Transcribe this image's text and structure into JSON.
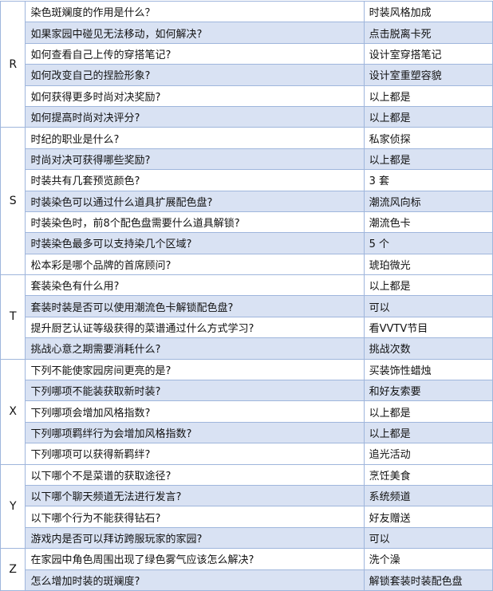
{
  "colors": {
    "row_alt": "#d9e2f3",
    "border": "#9fb6dc"
  },
  "groups": [
    {
      "letter": "R",
      "rows": [
        {
          "q": "染色斑斓度的作用是什么？",
          "a": "时装风格加成"
        },
        {
          "q": "如果家园中碰见无法移动，如何解决?",
          "a": "点击脱离卡死"
        },
        {
          "q": "如何查看自己上传的穿搭笔记?",
          "a": "设计室穿搭笔记"
        },
        {
          "q": "如何改变自己的捏脸形象?",
          "a": "设计室重塑容貌"
        },
        {
          "q": "如何获得更多时尚对决奖励?",
          "a": "以上都是"
        },
        {
          "q": "如何提高时尚对决评分?",
          "a": "以上都是"
        }
      ]
    },
    {
      "letter": "S",
      "rows": [
        {
          "q": "时纪的职业是什么?",
          "a": "私家侦探"
        },
        {
          "q": "时尚对决可获得哪些奖励?",
          "a": "以上都是"
        },
        {
          "q": "时装共有几套预览颜色?",
          "a": " 3 套"
        },
        {
          "q": "时装染色可以通过什么道具扩展配色盘?",
          "a": "潮流风向标"
        },
        {
          "q": "时装染色时，前8个配色盘需要什么道具解锁?",
          "a": "潮流色卡"
        },
        {
          "q": "时装染色最多可以支持染几个区域?",
          "a": " 5 个"
        },
        {
          "q": "松本彩是哪个品牌的首席顾问?",
          "a": "琥珀微光"
        }
      ]
    },
    {
      "letter": "T",
      "rows": [
        {
          "q": "套装染色有什么用?",
          "a": "以上都是"
        },
        {
          "q": "套装时装是否可以使用潮流色卡解锁配色盘?",
          "a": "可以"
        },
        {
          "q": "提升厨艺认证等级获得的菜谱通过什么方式学习?",
          "a": "看VVTV节目"
        },
        {
          "q": "挑战心意之期需要消耗什么?",
          "a": "挑战次数"
        }
      ]
    },
    {
      "letter": "X",
      "rows": [
        {
          "q": "下列不能使家园房间更亮的是?",
          "a": "买装饰性蜡烛"
        },
        {
          "q": "下列哪项不能装获取新时装?",
          "a": "和好友索要"
        },
        {
          "q": "下列哪项会增加风格指数?",
          "a": "以上都是"
        },
        {
          "q": "下列哪项羁绊行为会增加风格指数?",
          "a": "以上都是"
        },
        {
          "q": "下列哪项可以获得新羁绊?",
          "a": "追光活动"
        }
      ]
    },
    {
      "letter": "Y",
      "rows": [
        {
          "q": "以下哪个不是菜谱的获取途径?",
          "a": "烹饪美食"
        },
        {
          "q": "以下哪个聊天频道无法进行发言?",
          "a": "系统频道"
        },
        {
          "q": "以下哪个行为不能获得钻石?",
          "a": "好友赠送"
        },
        {
          "q": "游戏内是否可以拜访跨服玩家的家园?",
          "a": "可以"
        }
      ]
    },
    {
      "letter": "Z",
      "rows": [
        {
          "q": "在家园中角色周围出现了绿色雾气应该怎么解决?",
          "a": "洗个澡"
        },
        {
          "q": "怎么增加时装的斑斓度?",
          "a": "解锁套装时装配色盘"
        }
      ]
    }
  ]
}
